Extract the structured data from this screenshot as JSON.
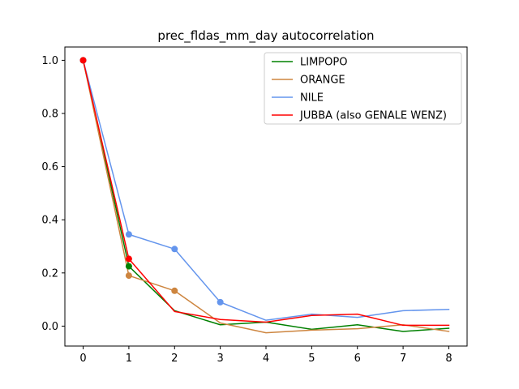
{
  "chart_data": {
    "type": "line",
    "title": "prec_fldas_mm_day autocorrelation",
    "xlabel": "",
    "ylabel": "",
    "x": [
      0,
      1,
      2,
      3,
      4,
      5,
      6,
      7,
      8
    ],
    "xlim": [
      -0.4,
      8.4
    ],
    "ylim": [
      -0.075,
      1.05
    ],
    "xticks": [
      0,
      1,
      2,
      3,
      4,
      5,
      6,
      7,
      8
    ],
    "yticks": [
      0.0,
      0.2,
      0.4,
      0.6,
      0.8,
      1.0
    ],
    "ytick_labels": [
      "0.0",
      "0.2",
      "0.4",
      "0.6",
      "0.8",
      "1.0"
    ],
    "grid": false,
    "legend_position": "top-right",
    "series": [
      {
        "name": "LIMPOPO",
        "color": "#008000",
        "values": [
          1.0,
          0.225,
          0.058,
          0.005,
          0.015,
          -0.012,
          0.005,
          -0.02,
          -0.008
        ],
        "markers": [
          0,
          1
        ]
      },
      {
        "name": "ORANGE",
        "color": "#cd853f",
        "values": [
          1.0,
          0.19,
          0.133,
          0.012,
          -0.025,
          -0.015,
          -0.01,
          0.005,
          -0.02
        ],
        "markers": [
          0,
          1,
          2
        ]
      },
      {
        "name": "NILE",
        "color": "#6495ed",
        "values": [
          1.0,
          0.345,
          0.29,
          0.09,
          0.022,
          0.045,
          0.033,
          0.058,
          0.063
        ],
        "markers": [
          0,
          1,
          2,
          3
        ]
      },
      {
        "name": "JUBBA (also GENALE WENZ)",
        "color": "#ff0000",
        "values": [
          1.0,
          0.253,
          0.055,
          0.025,
          0.015,
          0.04,
          0.045,
          0.003,
          0.003
        ],
        "markers": [
          0,
          1
        ]
      }
    ]
  }
}
